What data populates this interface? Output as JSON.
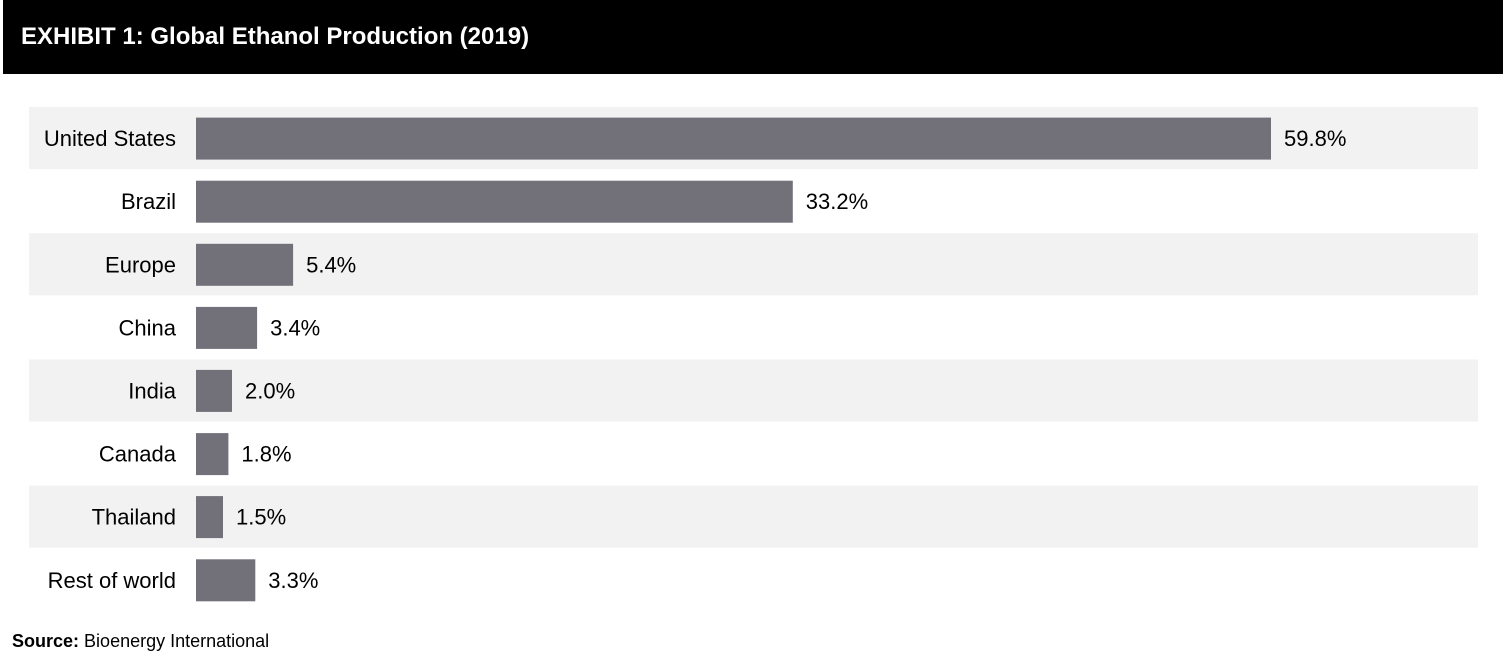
{
  "chart_data": {
    "type": "bar",
    "orientation": "horizontal",
    "title": "EXHIBIT 1: Global Ethanol Production (2019)",
    "categories": [
      "United States",
      "Brazil",
      "Europe",
      "China",
      "India",
      "Canada",
      "Thailand",
      "Rest of world"
    ],
    "values": [
      59.8,
      33.2,
      5.4,
      3.4,
      2.0,
      1.8,
      1.5,
      3.3
    ],
    "value_labels": [
      "59.8%",
      "33.2%",
      "5.4%",
      "3.4%",
      "2.0%",
      "1.8%",
      "1.5%",
      "3.3%"
    ],
    "unit": "%",
    "xlabel": "",
    "ylabel": "",
    "xlim": [
      0,
      70
    ],
    "grid": false,
    "legend": "none",
    "colors": {
      "bar": "#727079",
      "band": "#f2f2f2",
      "header_bg": "#000000",
      "header_text": "#ffffff"
    }
  },
  "source": {
    "label": "Source:",
    "text": "Bioenergy International"
  }
}
